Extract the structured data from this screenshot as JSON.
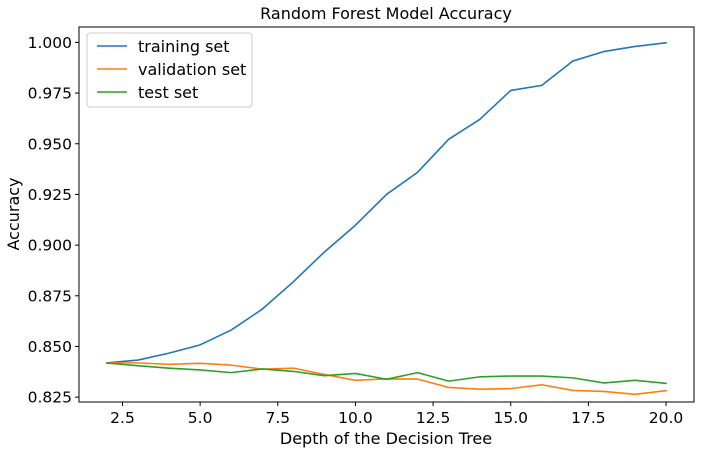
{
  "chart_data": {
    "type": "line",
    "title": "Random Forest Model Accuracy",
    "xlabel": "Depth of the Decision Tree",
    "ylabel": "Accuracy",
    "xlim": [
      1.1,
      20.9
    ],
    "ylim": [
      0.8226,
      1.0076
    ],
    "xticks": [
      2.5,
      5.0,
      7.5,
      10.0,
      12.5,
      15.0,
      17.5,
      20.0
    ],
    "xtick_labels": [
      "2.5",
      "5.0",
      "7.5",
      "10.0",
      "12.5",
      "15.0",
      "17.5",
      "20.0"
    ],
    "yticks": [
      0.825,
      0.85,
      0.875,
      0.9,
      0.925,
      0.95,
      0.975,
      1.0
    ],
    "ytick_labels": [
      "0.825",
      "0.850",
      "0.875",
      "0.900",
      "0.925",
      "0.950",
      "0.975",
      "1.000"
    ],
    "grid": false,
    "legend_position": "top-left",
    "x": [
      2,
      3,
      4,
      5,
      6,
      7,
      8,
      9,
      10,
      11,
      12,
      13,
      14,
      15,
      16,
      17,
      18,
      19,
      20
    ],
    "series": [
      {
        "name": "training set",
        "color": "#1f77b4",
        "values": [
          0.8419,
          0.8433,
          0.8467,
          0.8508,
          0.8581,
          0.8684,
          0.8819,
          0.8966,
          0.9098,
          0.925,
          0.9359,
          0.9522,
          0.962,
          0.9763,
          0.9788,
          0.9908,
          0.9955,
          0.998,
          0.9998
        ]
      },
      {
        "name": "validation set",
        "color": "#ff7f0e",
        "values": [
          0.8419,
          0.8419,
          0.8412,
          0.8417,
          0.8408,
          0.8388,
          0.8393,
          0.8362,
          0.8333,
          0.834,
          0.8339,
          0.8298,
          0.8289,
          0.8292,
          0.8311,
          0.8283,
          0.8278,
          0.8264,
          0.8282
        ]
      },
      {
        "name": "test set",
        "color": "#2ca02c",
        "values": [
          0.8418,
          0.8405,
          0.8393,
          0.8384,
          0.8371,
          0.8389,
          0.8377,
          0.8356,
          0.8367,
          0.8338,
          0.8371,
          0.8329,
          0.835,
          0.8354,
          0.8354,
          0.8345,
          0.832,
          0.8333,
          0.8318
        ]
      }
    ]
  }
}
